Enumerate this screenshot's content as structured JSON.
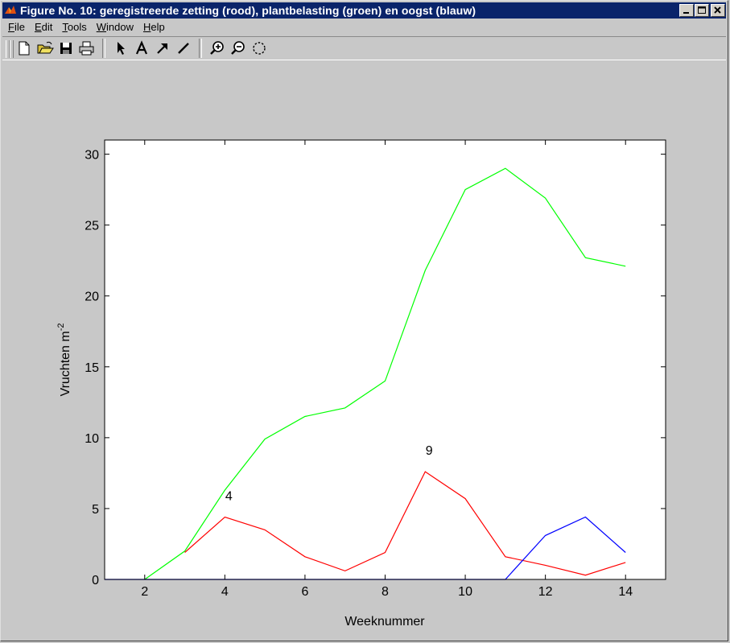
{
  "window": {
    "title": "Figure No. 10: geregistreerde zetting (rood), plantbelasting (groen) en oogst (blauw)"
  },
  "menu": {
    "items": [
      {
        "key": "F",
        "rest": "ile"
      },
      {
        "key": "E",
        "rest": "dit"
      },
      {
        "key": "T",
        "rest": "ools"
      },
      {
        "key": "W",
        "rest": "indow"
      },
      {
        "key": "H",
        "rest": "elp"
      }
    ]
  },
  "toolbar": {
    "icons": [
      "new-file-icon",
      "open-folder-icon",
      "save-icon",
      "print-icon",
      "select-arrow-icon",
      "text-icon",
      "arrow-tool-icon",
      "line-tool-icon",
      "zoom-in-icon",
      "zoom-out-icon",
      "rotate-icon"
    ]
  },
  "chart_data": {
    "type": "line",
    "title": "",
    "xlabel": "Weeknummer",
    "ylabel": "Vruchten m",
    "ylabel_superscript": "-2",
    "xlim": [
      1,
      15
    ],
    "ylim": [
      0,
      31
    ],
    "xticks": [
      2,
      4,
      6,
      8,
      10,
      12,
      14
    ],
    "yticks": [
      0,
      5,
      10,
      15,
      20,
      25,
      30
    ],
    "grid": false,
    "series": [
      {
        "color": "#00ff00",
        "x": [
          2,
          3,
          4,
          5,
          6,
          7,
          8,
          9,
          10,
          11,
          12,
          13,
          14
        ],
        "y": [
          0,
          2,
          6.3,
          9.9,
          11.5,
          12.1,
          14,
          21.8,
          27.5,
          29,
          26.9,
          22.7,
          22.1
        ]
      },
      {
        "color": "#ff0000",
        "x": [
          3,
          4,
          5,
          6,
          7,
          8,
          9,
          10,
          11,
          12,
          13,
          14
        ],
        "y": [
          1.9,
          4.4,
          3.5,
          1.6,
          0.6,
          1.9,
          7.6,
          5.7,
          1.6,
          1.0,
          0.3,
          1.2
        ]
      },
      {
        "color": "#0000ff",
        "x": [
          1,
          11,
          12,
          13,
          14
        ],
        "y": [
          0,
          0,
          3.1,
          4.4,
          1.9
        ]
      }
    ],
    "annotations": [
      {
        "text": "4",
        "x": 4.1,
        "y": 5.6
      },
      {
        "text": "9",
        "x": 9.1,
        "y": 8.8
      }
    ]
  }
}
